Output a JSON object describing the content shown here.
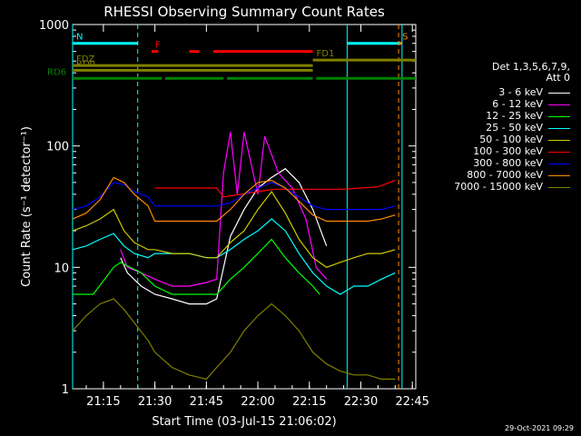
{
  "chart_data": {
    "type": "line",
    "title": "RHESSI Observing Summary Count Rates",
    "xlabel": "Start Time (03-Jul-15 21:06:02)",
    "ylabel": "Count Rate (s⁻¹ detector⁻¹)",
    "x_ticks": [
      "21:15",
      "21:30",
      "21:45",
      "22:00",
      "22:15",
      "22:30",
      "22:45"
    ],
    "x_range": [
      "21:06:02",
      "22:46"
    ],
    "y_ticks": [
      "1",
      "10",
      "100",
      "1000"
    ],
    "y_range": [
      1,
      1000
    ],
    "y_scale": "log",
    "legend": {
      "title_lines": [
        "Det 1,3,5,6,7,9,",
        "Att 0"
      ],
      "placement": "right"
    },
    "series": [
      {
        "name": "3 - 6 keV",
        "color": "#ffffff",
        "points": [
          [
            "21:20",
            12
          ],
          [
            "21:22",
            9
          ],
          [
            "21:26",
            7
          ],
          [
            "21:30",
            6
          ],
          [
            "21:35",
            5.5
          ],
          [
            "21:40",
            5
          ],
          [
            "21:45",
            5
          ],
          [
            "21:48",
            5.5
          ],
          [
            "21:52",
            18
          ],
          [
            "21:56",
            30
          ],
          [
            "22:00",
            45
          ],
          [
            "22:04",
            55
          ],
          [
            "22:08",
            65
          ],
          [
            "22:12",
            50
          ],
          [
            "22:16",
            30
          ],
          [
            "22:20",
            15
          ]
        ]
      },
      {
        "name": "6 - 12 keV",
        "color": "#ff00ff",
        "points": [
          [
            "21:20",
            14
          ],
          [
            "21:22",
            10
          ],
          [
            "21:26",
            9
          ],
          [
            "21:30",
            8
          ],
          [
            "21:35",
            7
          ],
          [
            "21:40",
            7
          ],
          [
            "21:45",
            7.5
          ],
          [
            "21:48",
            8
          ],
          [
            "21:50",
            60
          ],
          [
            "21:52",
            130
          ],
          [
            "21:54",
            40
          ],
          [
            "21:56",
            130
          ],
          [
            "22:00",
            40
          ],
          [
            "22:02",
            120
          ],
          [
            "22:06",
            60
          ],
          [
            "22:10",
            45
          ],
          [
            "22:14",
            25
          ],
          [
            "22:17",
            10
          ],
          [
            "22:20",
            8
          ]
        ]
      },
      {
        "name": "12 - 25 keV",
        "color": "#00ff00",
        "points": [
          [
            "21:06:02",
            6
          ],
          [
            "21:12",
            6
          ],
          [
            "21:18",
            10
          ],
          [
            "21:20",
            11
          ],
          [
            "21:26",
            9
          ],
          [
            "21:30",
            7
          ],
          [
            "21:35",
            6
          ],
          [
            "21:40",
            6
          ],
          [
            "21:45",
            6
          ],
          [
            "21:48",
            6
          ],
          [
            "21:52",
            8
          ],
          [
            "21:56",
            10
          ],
          [
            "22:00",
            13
          ],
          [
            "22:04",
            17
          ],
          [
            "22:08",
            12
          ],
          [
            "22:12",
            9
          ],
          [
            "22:16",
            7
          ],
          [
            "22:18",
            6
          ]
        ]
      },
      {
        "name": "25 - 50 keV",
        "color": "#00ffff",
        "points": [
          [
            "21:06:02",
            14
          ],
          [
            "21:10",
            15
          ],
          [
            "21:14",
            17
          ],
          [
            "21:18",
            19
          ],
          [
            "21:21",
            15
          ],
          [
            "21:24",
            13
          ],
          [
            "21:28",
            12
          ],
          [
            "21:30",
            13
          ],
          [
            "21:35",
            13
          ],
          [
            "21:40",
            13
          ],
          [
            "21:45",
            12
          ],
          [
            "21:48",
            12
          ],
          [
            "21:52",
            14
          ],
          [
            "21:56",
            17
          ],
          [
            "22:00",
            20
          ],
          [
            "22:04",
            25
          ],
          [
            "22:08",
            20
          ],
          [
            "22:12",
            13
          ],
          [
            "22:16",
            9
          ],
          [
            "22:20",
            7
          ],
          [
            "22:24",
            6
          ],
          [
            "22:28",
            7
          ],
          [
            "22:32",
            7
          ],
          [
            "22:36",
            8
          ],
          [
            "22:40",
            9
          ]
        ]
      },
      {
        "name": "50 - 100 keV",
        "color": "#cccc00",
        "points": [
          [
            "21:06:02",
            20
          ],
          [
            "21:10",
            22
          ],
          [
            "21:14",
            25
          ],
          [
            "21:18",
            30
          ],
          [
            "21:21",
            20
          ],
          [
            "21:24",
            16
          ],
          [
            "21:28",
            14
          ],
          [
            "21:30",
            14
          ],
          [
            "21:35",
            13
          ],
          [
            "21:40",
            13
          ],
          [
            "21:45",
            12
          ],
          [
            "21:48",
            12
          ],
          [
            "21:52",
            16
          ],
          [
            "21:56",
            20
          ],
          [
            "22:00",
            30
          ],
          [
            "22:04",
            42
          ],
          [
            "22:08",
            28
          ],
          [
            "22:12",
            17
          ],
          [
            "22:16",
            12
          ],
          [
            "22:20",
            10
          ],
          [
            "22:24",
            11
          ],
          [
            "22:28",
            12
          ],
          [
            "22:32",
            13
          ],
          [
            "22:36",
            13
          ],
          [
            "22:40",
            14
          ]
        ]
      },
      {
        "name": "100 - 300 keV",
        "color": "#ff0000",
        "points": [
          [
            "21:30",
            45
          ],
          [
            "21:35",
            45
          ],
          [
            "21:40",
            45
          ],
          [
            "21:45",
            45
          ],
          [
            "21:48",
            45
          ],
          [
            "21:50",
            38
          ],
          [
            "21:55",
            40
          ],
          [
            "22:00",
            42
          ],
          [
            "22:05",
            44
          ],
          [
            "22:10",
            44
          ],
          [
            "22:15",
            44
          ],
          [
            "22:20",
            44
          ],
          [
            "22:25",
            44
          ],
          [
            "22:30",
            45
          ],
          [
            "22:35",
            46
          ],
          [
            "22:40",
            52
          ]
        ]
      },
      {
        "name": "300 - 800 keV",
        "color": "#0000ff",
        "points": [
          [
            "21:06:02",
            30
          ],
          [
            "21:10",
            32
          ],
          [
            "21:14",
            38
          ],
          [
            "21:18",
            50
          ],
          [
            "21:21",
            48
          ],
          [
            "21:24",
            42
          ],
          [
            "21:28",
            38
          ],
          [
            "21:30",
            32
          ],
          [
            "21:35",
            32
          ],
          [
            "21:40",
            32
          ],
          [
            "21:45",
            32
          ],
          [
            "21:48",
            32
          ],
          [
            "21:52",
            34
          ],
          [
            "21:56",
            40
          ],
          [
            "22:00",
            45
          ],
          [
            "22:04",
            50
          ],
          [
            "22:08",
            45
          ],
          [
            "22:12",
            38
          ],
          [
            "22:16",
            32
          ],
          [
            "22:20",
            30
          ],
          [
            "22:24",
            30
          ],
          [
            "22:28",
            30
          ],
          [
            "22:32",
            30
          ],
          [
            "22:36",
            30
          ],
          [
            "22:40",
            32
          ]
        ]
      },
      {
        "name": "800 - 7000 keV",
        "color": "#ff8800",
        "points": [
          [
            "21:06:02",
            25
          ],
          [
            "21:10",
            28
          ],
          [
            "21:14",
            36
          ],
          [
            "21:18",
            55
          ],
          [
            "21:21",
            50
          ],
          [
            "21:24",
            40
          ],
          [
            "21:28",
            32
          ],
          [
            "21:30",
            24
          ],
          [
            "21:35",
            24
          ],
          [
            "21:40",
            24
          ],
          [
            "21:45",
            24
          ],
          [
            "21:48",
            24
          ],
          [
            "21:52",
            30
          ],
          [
            "21:56",
            40
          ],
          [
            "22:00",
            50
          ],
          [
            "22:04",
            52
          ],
          [
            "22:08",
            45
          ],
          [
            "22:12",
            35
          ],
          [
            "22:16",
            27
          ],
          [
            "22:20",
            24
          ],
          [
            "22:24",
            24
          ],
          [
            "22:28",
            24
          ],
          [
            "22:32",
            24
          ],
          [
            "22:36",
            25
          ],
          [
            "22:40",
            27
          ]
        ]
      },
      {
        "name": "7000 - 15000 keV",
        "color": "#808000",
        "points": [
          [
            "21:06:02",
            3
          ],
          [
            "21:10",
            4
          ],
          [
            "21:14",
            5
          ],
          [
            "21:18",
            5.5
          ],
          [
            "21:21",
            4.5
          ],
          [
            "21:24",
            3.5
          ],
          [
            "21:28",
            2.5
          ],
          [
            "21:30",
            2
          ],
          [
            "21:35",
            1.5
          ],
          [
            "21:40",
            1.3
          ],
          [
            "21:45",
            1.2
          ],
          [
            "21:48",
            1.5
          ],
          [
            "21:52",
            2
          ],
          [
            "21:56",
            3
          ],
          [
            "22:00",
            4
          ],
          [
            "22:04",
            5
          ],
          [
            "22:08",
            4
          ],
          [
            "22:12",
            3
          ],
          [
            "22:16",
            2
          ],
          [
            "22:20",
            1.6
          ],
          [
            "22:24",
            1.4
          ],
          [
            "22:28",
            1.3
          ],
          [
            "22:32",
            1.3
          ],
          [
            "22:36",
            1.2
          ],
          [
            "22:40",
            1.2
          ]
        ]
      }
    ],
    "flag_bars": [
      {
        "label": "N",
        "color": "#00ffff",
        "level": 700,
        "segments": [
          [
            "21:06:02",
            "21:25"
          ],
          [
            "22:26",
            "22:42"
          ]
        ]
      },
      {
        "label": "F",
        "color": "#ff0000",
        "level": 600,
        "segments": [
          [
            "21:29",
            "21:31"
          ],
          [
            "21:40",
            "21:43"
          ],
          [
            "21:47",
            "22:16"
          ]
        ]
      },
      {
        "label": "S",
        "color": "#ff8800",
        "level": 700,
        "segments": [
          [
            "22:41",
            "22:42"
          ]
        ]
      },
      {
        "label": "FD1",
        "color": "#808000",
        "level": 510,
        "segments": [
          [
            "22:16",
            "22:46"
          ]
        ]
      },
      {
        "label": "FDZ",
        "color": "#808000",
        "level": 460,
        "segments": [
          [
            "21:06:02",
            "22:16"
          ]
        ]
      },
      {
        "label": "RD0",
        "color": "#808000",
        "level": 420,
        "segments": [
          [
            "21:06:02",
            "22:16"
          ]
        ]
      },
      {
        "label": "RD6",
        "color": "#008000",
        "level": 360,
        "segments": [
          [
            "21:06:02",
            "21:32"
          ],
          [
            "21:33",
            "21:50"
          ],
          [
            "21:51",
            "22:16"
          ],
          [
            "22:17",
            "22:46"
          ]
        ]
      }
    ],
    "vertical_lines": [
      {
        "time": "21:06:02",
        "color": "#00ffff",
        "style": "solid"
      },
      {
        "time": "21:25",
        "color": "#00ffff",
        "style": "dashed"
      },
      {
        "time": "22:26",
        "color": "#00ffff",
        "style": "solid"
      },
      {
        "time": "22:41",
        "color": "#ff8800",
        "style": "dashed"
      },
      {
        "time": "22:42",
        "color": "#00ffff",
        "style": "solid"
      }
    ],
    "grid": false
  },
  "timestamp": "29-Oct-2021 09:29"
}
